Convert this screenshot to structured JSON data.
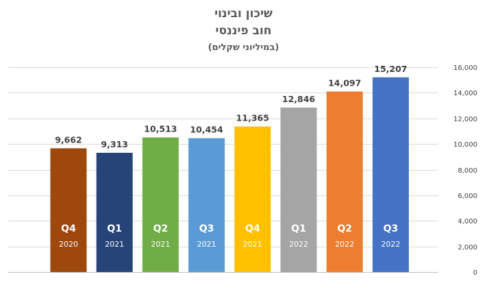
{
  "chart_data": {
    "type": "bar",
    "title": "שיכון ובינוי",
    "subtitle": "חוב פיננסי",
    "unit_label": "(במיליוני שקלים)",
    "categories": [
      {
        "quarter": "Q4",
        "year": "2020"
      },
      {
        "quarter": "Q1",
        "year": "2021"
      },
      {
        "quarter": "Q2",
        "year": "2021"
      },
      {
        "quarter": "Q3",
        "year": "2021"
      },
      {
        "quarter": "Q4",
        "year": "2021"
      },
      {
        "quarter": "Q1",
        "year": "2022"
      },
      {
        "quarter": "Q2",
        "year": "2022"
      },
      {
        "quarter": "Q3",
        "year": "2022"
      }
    ],
    "values": [
      9662,
      9313,
      10513,
      10454,
      11365,
      12846,
      14097,
      15207
    ],
    "value_labels": [
      "9,662",
      "9,313",
      "10,513",
      "10,454",
      "11,365",
      "12,846",
      "14,097",
      "15,207"
    ],
    "colors": [
      "#9E480E",
      "#264478",
      "#70AD47",
      "#5B9BD5",
      "#FFC000",
      "#A5A5A5",
      "#ED7D31",
      "#4472C4"
    ],
    "ylim": [
      0,
      16000
    ],
    "yticks": [
      0,
      2000,
      4000,
      6000,
      8000,
      10000,
      12000,
      14000,
      16000
    ],
    "ytick_labels": [
      "0",
      "2,000",
      "4,000",
      "6,000",
      "8,000",
      "10,000",
      "12,000",
      "14,000",
      "16,000"
    ],
    "y_axis_position": "right",
    "grid": true,
    "legend": "none"
  }
}
